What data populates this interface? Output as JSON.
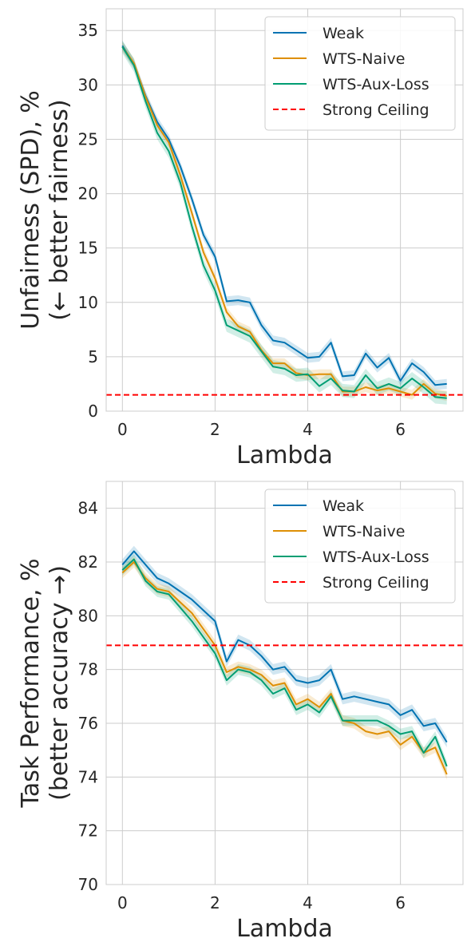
{
  "chart_data": [
    {
      "type": "line",
      "xlabel": "Lambda",
      "ylabel": [
        "Unfairness (SPD), %",
        "(← better fairness)"
      ],
      "xlim": [
        -0.35,
        7.35
      ],
      "ylim": [
        0,
        37
      ],
      "xticks": [
        0,
        2,
        4,
        6
      ],
      "yticks": [
        0,
        5,
        10,
        15,
        20,
        25,
        30,
        35
      ],
      "grid": true,
      "legend": "top-right",
      "x": [
        0,
        0.25,
        0.5,
        0.75,
        1.0,
        1.25,
        1.5,
        1.75,
        2.0,
        2.25,
        2.5,
        2.75,
        3.0,
        3.25,
        3.5,
        3.75,
        4.0,
        4.25,
        4.5,
        4.75,
        5.0,
        5.25,
        5.5,
        5.75,
        6.0,
        6.25,
        6.5,
        6.75,
        7.0
      ],
      "series": [
        {
          "name": "Weak",
          "color": "#0173b2",
          "band": 0.45,
          "values": [
            33.6,
            31.9,
            29.0,
            26.6,
            25.0,
            22.5,
            19.5,
            16.2,
            14.2,
            10.1,
            10.2,
            10.0,
            7.9,
            6.5,
            6.3,
            5.6,
            4.9,
            5.0,
            6.3,
            3.2,
            3.3,
            5.3,
            4.0,
            4.9,
            2.8,
            4.4,
            3.6,
            2.4,
            2.5
          ]
        },
        {
          "name": "WTS-Naive",
          "color": "#de8f05",
          "band": 0.45,
          "values": [
            33.5,
            32.0,
            28.9,
            26.3,
            24.7,
            21.7,
            18.2,
            14.6,
            12.2,
            9.1,
            7.8,
            7.3,
            5.6,
            4.4,
            4.4,
            3.5,
            3.3,
            3.4,
            3.4,
            1.8,
            1.8,
            2.2,
            1.9,
            2.1,
            1.8,
            1.5,
            2.5,
            1.6,
            1.4
          ]
        },
        {
          "name": "WTS-Aux-Loss",
          "color": "#029e73",
          "band": 0.6,
          "values": [
            33.5,
            31.8,
            28.5,
            25.6,
            23.9,
            21.0,
            17.0,
            13.4,
            11.1,
            7.9,
            7.4,
            6.9,
            5.5,
            4.1,
            3.9,
            3.3,
            3.4,
            2.3,
            3.0,
            1.9,
            1.8,
            3.3,
            2.1,
            2.5,
            2.1,
            3.0,
            2.2,
            1.3,
            1.2
          ]
        }
      ],
      "reference_line": {
        "name": "Strong Ceiling",
        "value": 1.5,
        "color": "#ff0000",
        "style": "dashed"
      }
    },
    {
      "type": "line",
      "xlabel": "Lambda",
      "ylabel": [
        "Task Performance, %",
        "(better accuracy →)"
      ],
      "xlim": [
        -0.35,
        7.35
      ],
      "ylim": [
        70,
        85
      ],
      "xticks": [
        0,
        2,
        4,
        6
      ],
      "yticks": [
        70,
        72,
        74,
        76,
        78,
        80,
        82,
        84
      ],
      "grid": true,
      "legend": "top-right",
      "x": [
        0,
        0.25,
        0.5,
        0.75,
        1.0,
        1.25,
        1.5,
        1.75,
        2.0,
        2.25,
        2.5,
        2.75,
        3.0,
        3.25,
        3.5,
        3.75,
        4.0,
        4.25,
        4.5,
        4.75,
        5.0,
        5.25,
        5.5,
        5.75,
        6.0,
        6.25,
        6.5,
        6.75,
        7.0
      ],
      "series": [
        {
          "name": "Weak",
          "color": "#0173b2",
          "band": 0.2,
          "values": [
            81.9,
            82.4,
            81.9,
            81.4,
            81.2,
            80.9,
            80.6,
            80.2,
            79.8,
            78.3,
            79.1,
            78.9,
            78.5,
            78.0,
            78.1,
            77.6,
            77.5,
            77.6,
            78.0,
            76.9,
            77.0,
            76.9,
            76.8,
            76.7,
            76.3,
            76.5,
            75.9,
            76.0,
            75.3
          ]
        },
        {
          "name": "WTS-Naive",
          "color": "#de8f05",
          "band": 0.2,
          "values": [
            81.6,
            82.0,
            81.4,
            81.0,
            80.9,
            80.5,
            80.1,
            79.5,
            78.9,
            77.9,
            78.1,
            78.0,
            77.8,
            77.4,
            77.5,
            76.7,
            76.9,
            76.6,
            77.1,
            76.1,
            76.0,
            75.7,
            75.6,
            75.7,
            75.2,
            75.5,
            74.9,
            75.1,
            74.1
          ]
        },
        {
          "name": "WTS-Aux-Loss",
          "color": "#029e73",
          "band": 0.2,
          "values": [
            81.7,
            82.1,
            81.3,
            80.9,
            80.8,
            80.3,
            79.8,
            79.2,
            78.6,
            77.6,
            78.0,
            77.9,
            77.6,
            77.1,
            77.3,
            76.5,
            76.7,
            76.4,
            77.0,
            76.1,
            76.1,
            76.1,
            76.1,
            75.9,
            75.6,
            75.7,
            74.9,
            75.5,
            74.4
          ]
        }
      ],
      "reference_line": {
        "name": "Strong Ceiling",
        "value": 78.9,
        "color": "#ff0000",
        "style": "dashed"
      }
    }
  ]
}
